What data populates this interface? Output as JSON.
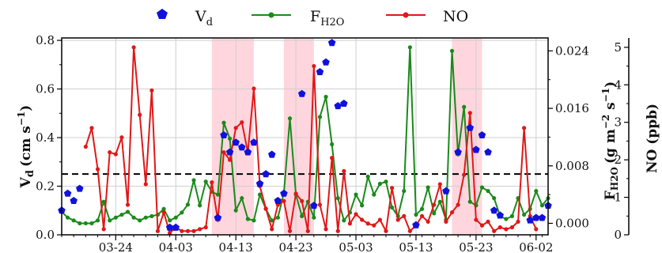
{
  "chart_data": {
    "type": "line",
    "title": "",
    "legend": {
      "placement": "top-center",
      "entries": [
        {
          "id": "vd",
          "text": "V",
          "sub": "d"
        },
        {
          "id": "fh2o",
          "text": "F",
          "sub": "H2O"
        },
        {
          "id": "no",
          "text": "NO",
          "sub": ""
        }
      ]
    },
    "x_axis": {
      "type": "date",
      "range": [
        "2023-03-15",
        "2023-06-04"
      ],
      "ticks": [
        {
          "date": "2023-03-24",
          "label": "03-24"
        },
        {
          "date": "2023-04-03",
          "label": "04-03"
        },
        {
          "date": "2023-04-13",
          "label": "04-13"
        },
        {
          "date": "2023-04-23",
          "label": "04-23"
        },
        {
          "date": "2023-05-03",
          "label": "05-03"
        },
        {
          "date": "2023-05-13",
          "label": "05-13"
        },
        {
          "date": "2023-05-23",
          "label": "05-23"
        },
        {
          "date": "2023-06-02",
          "label": "06-02"
        }
      ],
      "grid": true
    },
    "y_left": {
      "label_main": "V",
      "label_sub": "d",
      "label_units": "(cm s",
      "label_sup": "−1",
      "label_close": ")",
      "range": [
        0,
        0.81
      ],
      "ticks": [
        "0.0",
        "0.2",
        "0.4",
        "0.6",
        "0.8"
      ],
      "grid": true
    },
    "y_right_1": {
      "label_main": "F",
      "label_sub": "H2O",
      "label_units": "(g m",
      "label_sup1": "−2",
      "label_mid": " s",
      "label_sup2": "−1",
      "label_close": ")",
      "range": [
        -0.0016,
        0.0258
      ],
      "ticks": [
        "0.000",
        "0.008",
        "0.016",
        "0.024"
      ]
    },
    "y_right_2": {
      "label": "NO (ppb)",
      "range": [
        0,
        5.25
      ],
      "ticks": [
        "0",
        "1",
        "2",
        "3",
        "4",
        "5"
      ]
    },
    "threshold_line": {
      "axis": "left",
      "value": 0.25,
      "style": "dashed"
    },
    "shaded_periods": [
      {
        "start": "2023-04-09",
        "end": "2023-04-16"
      },
      {
        "start": "2023-04-21",
        "end": "2023-04-26"
      },
      {
        "start": "2023-05-19",
        "end": "2023-05-24"
      }
    ],
    "colors": {
      "vd": "#1111dd",
      "fh2o": "#1a8a1a",
      "no": "#e01818",
      "shade": "#ffd6de"
    },
    "series": [
      {
        "id": "vd",
        "name": "V_d",
        "axis": "left",
        "style": "markers",
        "marker": "pentagon",
        "points": [
          [
            "2023-03-15",
            0.1
          ],
          [
            "2023-03-16",
            0.17
          ],
          [
            "2023-03-17",
            0.14
          ],
          [
            "2023-03-18",
            0.19
          ],
          [
            "2023-04-02",
            0.03
          ],
          [
            "2023-04-03",
            0.03
          ],
          [
            "2023-04-10",
            0.07
          ],
          [
            "2023-04-11",
            0.41
          ],
          [
            "2023-04-12",
            0.34
          ],
          [
            "2023-04-13",
            0.38
          ],
          [
            "2023-04-14",
            0.36
          ],
          [
            "2023-04-15",
            0.34
          ],
          [
            "2023-04-16",
            0.38
          ],
          [
            "2023-04-17",
            0.21
          ],
          [
            "2023-04-18",
            0.25
          ],
          [
            "2023-04-19",
            0.33
          ],
          [
            "2023-04-20",
            0.14
          ],
          [
            "2023-04-21",
            0.17
          ],
          [
            "2023-04-24",
            0.58
          ],
          [
            "2023-04-26",
            0.12
          ],
          [
            "2023-04-27",
            0.67
          ],
          [
            "2023-04-28",
            0.71
          ],
          [
            "2023-04-29",
            0.79
          ],
          [
            "2023-04-30",
            0.53
          ],
          [
            "2023-05-01",
            0.54
          ],
          [
            "2023-05-13",
            0.04
          ],
          [
            "2023-05-18",
            0.18
          ],
          [
            "2023-05-20",
            0.34
          ],
          [
            "2023-05-22",
            0.44
          ],
          [
            "2023-05-23",
            0.35
          ],
          [
            "2023-05-24",
            0.41
          ],
          [
            "2023-05-25",
            0.34
          ],
          [
            "2023-05-26",
            0.1
          ],
          [
            "2023-05-27",
            0.08
          ],
          [
            "2023-06-01",
            0.06
          ],
          [
            "2023-06-02",
            0.07
          ],
          [
            "2023-06-03",
            0.07
          ],
          [
            "2023-06-04",
            0.12
          ]
        ]
      },
      {
        "id": "fh2o",
        "name": "F_H2O",
        "axis": "right_1",
        "style": "line+markers",
        "points": [
          [
            "2023-03-15",
            0.0016
          ],
          [
            "2023-03-16",
            0.0008
          ],
          [
            "2023-03-17",
            0.0004
          ],
          [
            "2023-03-18",
            0.0
          ],
          [
            "2023-03-19",
            0.0
          ],
          [
            "2023-03-20",
            0.0
          ],
          [
            "2023-03-21",
            0.0004
          ],
          [
            "2023-03-22",
            0.003
          ],
          [
            "2023-03-23",
            0.0004
          ],
          [
            "2023-03-24",
            0.0008
          ],
          [
            "2023-03-25",
            0.0012
          ],
          [
            "2023-03-26",
            0.0016
          ],
          [
            "2023-03-27",
            0.0008
          ],
          [
            "2023-03-28",
            0.0004
          ],
          [
            "2023-03-29",
            0.0008
          ],
          [
            "2023-03-30",
            0.001
          ],
          [
            "2023-03-31",
            0.0012
          ],
          [
            "2023-04-01",
            0.002
          ],
          [
            "2023-04-02",
            0.0004
          ],
          [
            "2023-04-03",
            0.0008
          ],
          [
            "2023-04-04",
            0.0015
          ],
          [
            "2023-04-05",
            0.0026
          ],
          [
            "2023-04-06",
            0.006
          ],
          [
            "2023-04-07",
            0.0025
          ],
          [
            "2023-04-08",
            0.0058
          ],
          [
            "2023-04-09",
            0.0044
          ],
          [
            "2023-04-10",
            0.004
          ],
          [
            "2023-04-11",
            0.014
          ],
          [
            "2023-04-12",
            0.0118
          ],
          [
            "2023-04-13",
            0.0018
          ],
          [
            "2023-04-14",
            0.0035
          ],
          [
            "2023-04-15",
            0.0006
          ],
          [
            "2023-04-16",
            0.0004
          ],
          [
            "2023-04-17",
            0.004
          ],
          [
            "2023-04-18",
            0.002
          ],
          [
            "2023-04-19",
            0.0004
          ],
          [
            "2023-04-20",
            0.0008
          ],
          [
            "2023-04-21",
            0.0042
          ],
          [
            "2023-04-22",
            0.0146
          ],
          [
            "2023-04-23",
            0.004
          ],
          [
            "2023-04-24",
            0.001
          ],
          [
            "2023-04-25",
            0.003
          ],
          [
            "2023-04-26",
            0.0008
          ],
          [
            "2023-04-27",
            0.0148
          ],
          [
            "2023-04-28",
            0.0176
          ],
          [
            "2023-04-29",
            0.011
          ],
          [
            "2023-04-30",
            0.0035
          ],
          [
            "2023-05-01",
            0.0004
          ],
          [
            "2023-05-02",
            0.0015
          ],
          [
            "2023-05-03",
            0.004
          ],
          [
            "2023-05-04",
            0.0025
          ],
          [
            "2023-05-05",
            0.0065
          ],
          [
            "2023-05-06",
            0.004
          ],
          [
            "2023-05-07",
            0.0055
          ],
          [
            "2023-05-08",
            0.0058
          ],
          [
            "2023-05-09",
            0.0022
          ],
          [
            "2023-05-10",
            0.001
          ],
          [
            "2023-05-11",
            0.0045
          ],
          [
            "2023-05-12",
            0.0245
          ],
          [
            "2023-05-13",
            0.0012
          ],
          [
            "2023-05-14",
            0.002
          ],
          [
            "2023-05-15",
            0.005
          ],
          [
            "2023-05-16",
            0.0014
          ],
          [
            "2023-05-17",
            0.003
          ],
          [
            "2023-05-18",
            0.0005
          ],
          [
            "2023-05-19",
            0.024
          ],
          [
            "2023-05-20",
            0.0096
          ],
          [
            "2023-05-21",
            0.0162
          ],
          [
            "2023-05-22",
            0.003
          ],
          [
            "2023-05-23",
            0.0025
          ],
          [
            "2023-05-24",
            0.005
          ],
          [
            "2023-05-25",
            0.0045
          ],
          [
            "2023-05-26",
            0.0035
          ],
          [
            "2023-05-27",
            0.001
          ],
          [
            "2023-05-28",
            0.0006
          ],
          [
            "2023-05-29",
            0.001
          ],
          [
            "2023-05-30",
            0.0035
          ],
          [
            "2023-05-31",
            0.0012
          ],
          [
            "2023-06-01",
            0.002
          ],
          [
            "2023-06-02",
            0.0045
          ],
          [
            "2023-06-03",
            0.0025
          ],
          [
            "2023-06-04",
            0.0035
          ]
        ]
      },
      {
        "id": "no",
        "name": "NO",
        "axis": "right_2",
        "style": "line+markers",
        "points": [
          [
            "2023-03-19",
            2.35
          ],
          [
            "2023-03-20",
            2.85
          ],
          [
            "2023-03-21",
            1.75
          ],
          [
            "2023-03-22",
            0.15
          ],
          [
            "2023-03-23",
            2.2
          ],
          [
            "2023-03-24",
            2.15
          ],
          [
            "2023-03-25",
            2.6
          ],
          [
            "2023-03-26",
            0.8
          ],
          [
            "2023-03-27",
            5.0
          ],
          [
            "2023-03-28",
            3.2
          ],
          [
            "2023-03-29",
            1.35
          ],
          [
            "2023-03-30",
            3.85
          ],
          [
            "2023-03-31",
            0.1
          ],
          [
            "2023-04-01",
            0.6
          ],
          [
            "2023-04-02",
            0.05
          ],
          [
            "2023-04-03",
            0.2
          ],
          [
            "2023-04-04",
            0.1
          ],
          [
            "2023-04-05",
            0.1
          ],
          [
            "2023-04-06",
            0.1
          ],
          [
            "2023-04-07",
            0.15
          ],
          [
            "2023-04-08",
            0.2
          ],
          [
            "2023-04-09",
            1.4
          ],
          [
            "2023-04-10",
            0.4
          ],
          [
            "2023-04-11",
            2.2
          ],
          [
            "2023-04-12",
            2.0
          ],
          [
            "2023-04-13",
            2.85
          ],
          [
            "2023-04-14",
            3.0
          ],
          [
            "2023-04-15",
            2.2
          ],
          [
            "2023-04-16",
            3.9
          ],
          [
            "2023-04-17",
            1.3
          ],
          [
            "2023-04-18",
            0.7
          ],
          [
            "2023-04-19",
            0.15
          ],
          [
            "2023-04-20",
            0.8
          ],
          [
            "2023-04-21",
            0.9
          ],
          [
            "2023-04-22",
            0.1
          ],
          [
            "2023-04-23",
            1.1
          ],
          [
            "2023-04-24",
            0.9
          ],
          [
            "2023-04-25",
            0.1
          ],
          [
            "2023-04-26",
            4.5
          ],
          [
            "2023-04-27",
            0.8
          ],
          [
            "2023-04-28",
            0.15
          ],
          [
            "2023-04-29",
            2.05
          ],
          [
            "2023-04-30",
            0.1
          ],
          [
            "2023-05-01",
            1.7
          ],
          [
            "2023-05-02",
            0.3
          ],
          [
            "2023-05-03",
            0.55
          ],
          [
            "2023-05-04",
            0.4
          ],
          [
            "2023-05-05",
            0.3
          ],
          [
            "2023-05-06",
            0.25
          ],
          [
            "2023-05-07",
            0.4
          ],
          [
            "2023-05-08",
            0.1
          ],
          [
            "2023-05-09",
            1.25
          ],
          [
            "2023-05-10",
            0.4
          ],
          [
            "2023-05-11",
            0.5
          ],
          [
            "2023-05-12",
            0.1
          ],
          [
            "2023-05-13",
            0.25
          ],
          [
            "2023-05-14",
            0.5
          ],
          [
            "2023-05-15",
            0.35
          ],
          [
            "2023-05-16",
            0.8
          ],
          [
            "2023-05-17",
            1.35
          ],
          [
            "2023-05-18",
            0.35
          ],
          [
            "2023-05-19",
            0.6
          ],
          [
            "2023-05-20",
            0.8
          ],
          [
            "2023-05-21",
            1.6
          ],
          [
            "2023-05-22",
            3.25
          ],
          [
            "2023-05-23",
            0.4
          ],
          [
            "2023-05-24",
            0.25
          ],
          [
            "2023-05-25",
            0.35
          ],
          [
            "2023-05-26",
            0.1
          ],
          [
            "2023-05-27",
            0.2
          ],
          [
            "2023-05-28",
            0.15
          ],
          [
            "2023-05-29",
            0.2
          ],
          [
            "2023-05-30",
            0.35
          ],
          [
            "2023-05-31",
            2.85
          ],
          [
            "2023-06-01",
            0.5
          ],
          [
            "2023-06-02",
            0.15
          ]
        ]
      }
    ]
  }
}
